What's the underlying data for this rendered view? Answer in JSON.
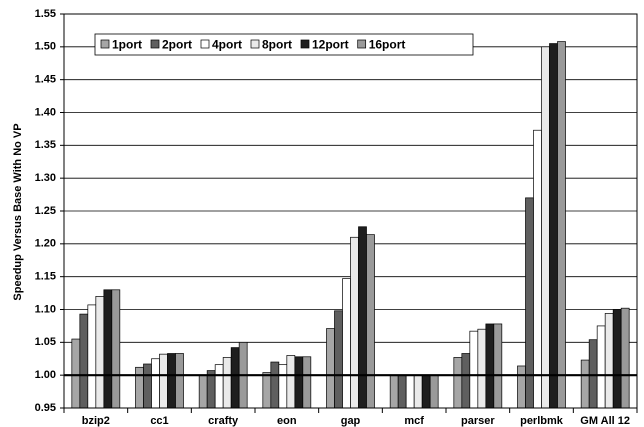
{
  "chart_data": {
    "type": "bar",
    "y_label": "Speedup Versus Base With No VP",
    "categories": [
      "bzip2",
      "cc1",
      "crafty",
      "eon",
      "gap",
      "mcf",
      "parser",
      "perlbmk",
      "GM All 12"
    ],
    "series": [
      {
        "name": "1port",
        "color": "#a6a6a6",
        "values": [
          1.055,
          1.012,
          1.0,
          1.004,
          1.071,
          1.0,
          1.027,
          1.014,
          1.023
        ]
      },
      {
        "name": "2port",
        "color": "#5f5f5f",
        "values": [
          1.093,
          1.017,
          1.007,
          1.02,
          1.098,
          1.0,
          1.033,
          1.27,
          1.054
        ]
      },
      {
        "name": "4port",
        "color": "#ffffff",
        "values": [
          1.107,
          1.025,
          1.016,
          1.016,
          1.147,
          1.0,
          1.067,
          1.373,
          1.075
        ]
      },
      {
        "name": "8port",
        "color": "#eaeaea",
        "values": [
          1.12,
          1.032,
          1.027,
          1.03,
          1.21,
          1.0,
          1.07,
          1.5,
          1.094
        ]
      },
      {
        "name": "12port",
        "color": "#1e1e1e",
        "values": [
          1.13,
          1.033,
          1.042,
          1.028,
          1.226,
          1.0,
          1.078,
          1.505,
          1.1
        ]
      },
      {
        "name": "16port",
        "color": "#9a9a9a",
        "values": [
          1.13,
          1.033,
          1.05,
          1.028,
          1.214,
          1.0,
          1.078,
          1.508,
          1.102
        ]
      }
    ],
    "ylim": [
      0.95,
      1.55
    ],
    "yticks": [
      0.95,
      {
        "value": 1.0,
        "label": "1.00"
      },
      1.05,
      {
        "value": 1.1,
        "label": "1.10"
      },
      1.15,
      {
        "value": 1.2,
        "label": "1.20"
      },
      1.25,
      {
        "value": 1.3,
        "label": "1.30"
      },
      1.35,
      {
        "value": 1.4,
        "label": "1.40"
      },
      1.45,
      {
        "value": 1.5,
        "label": "1.50"
      },
      1.55
    ],
    "reference_line": 1.0,
    "grid": true,
    "legend": "top-left"
  }
}
